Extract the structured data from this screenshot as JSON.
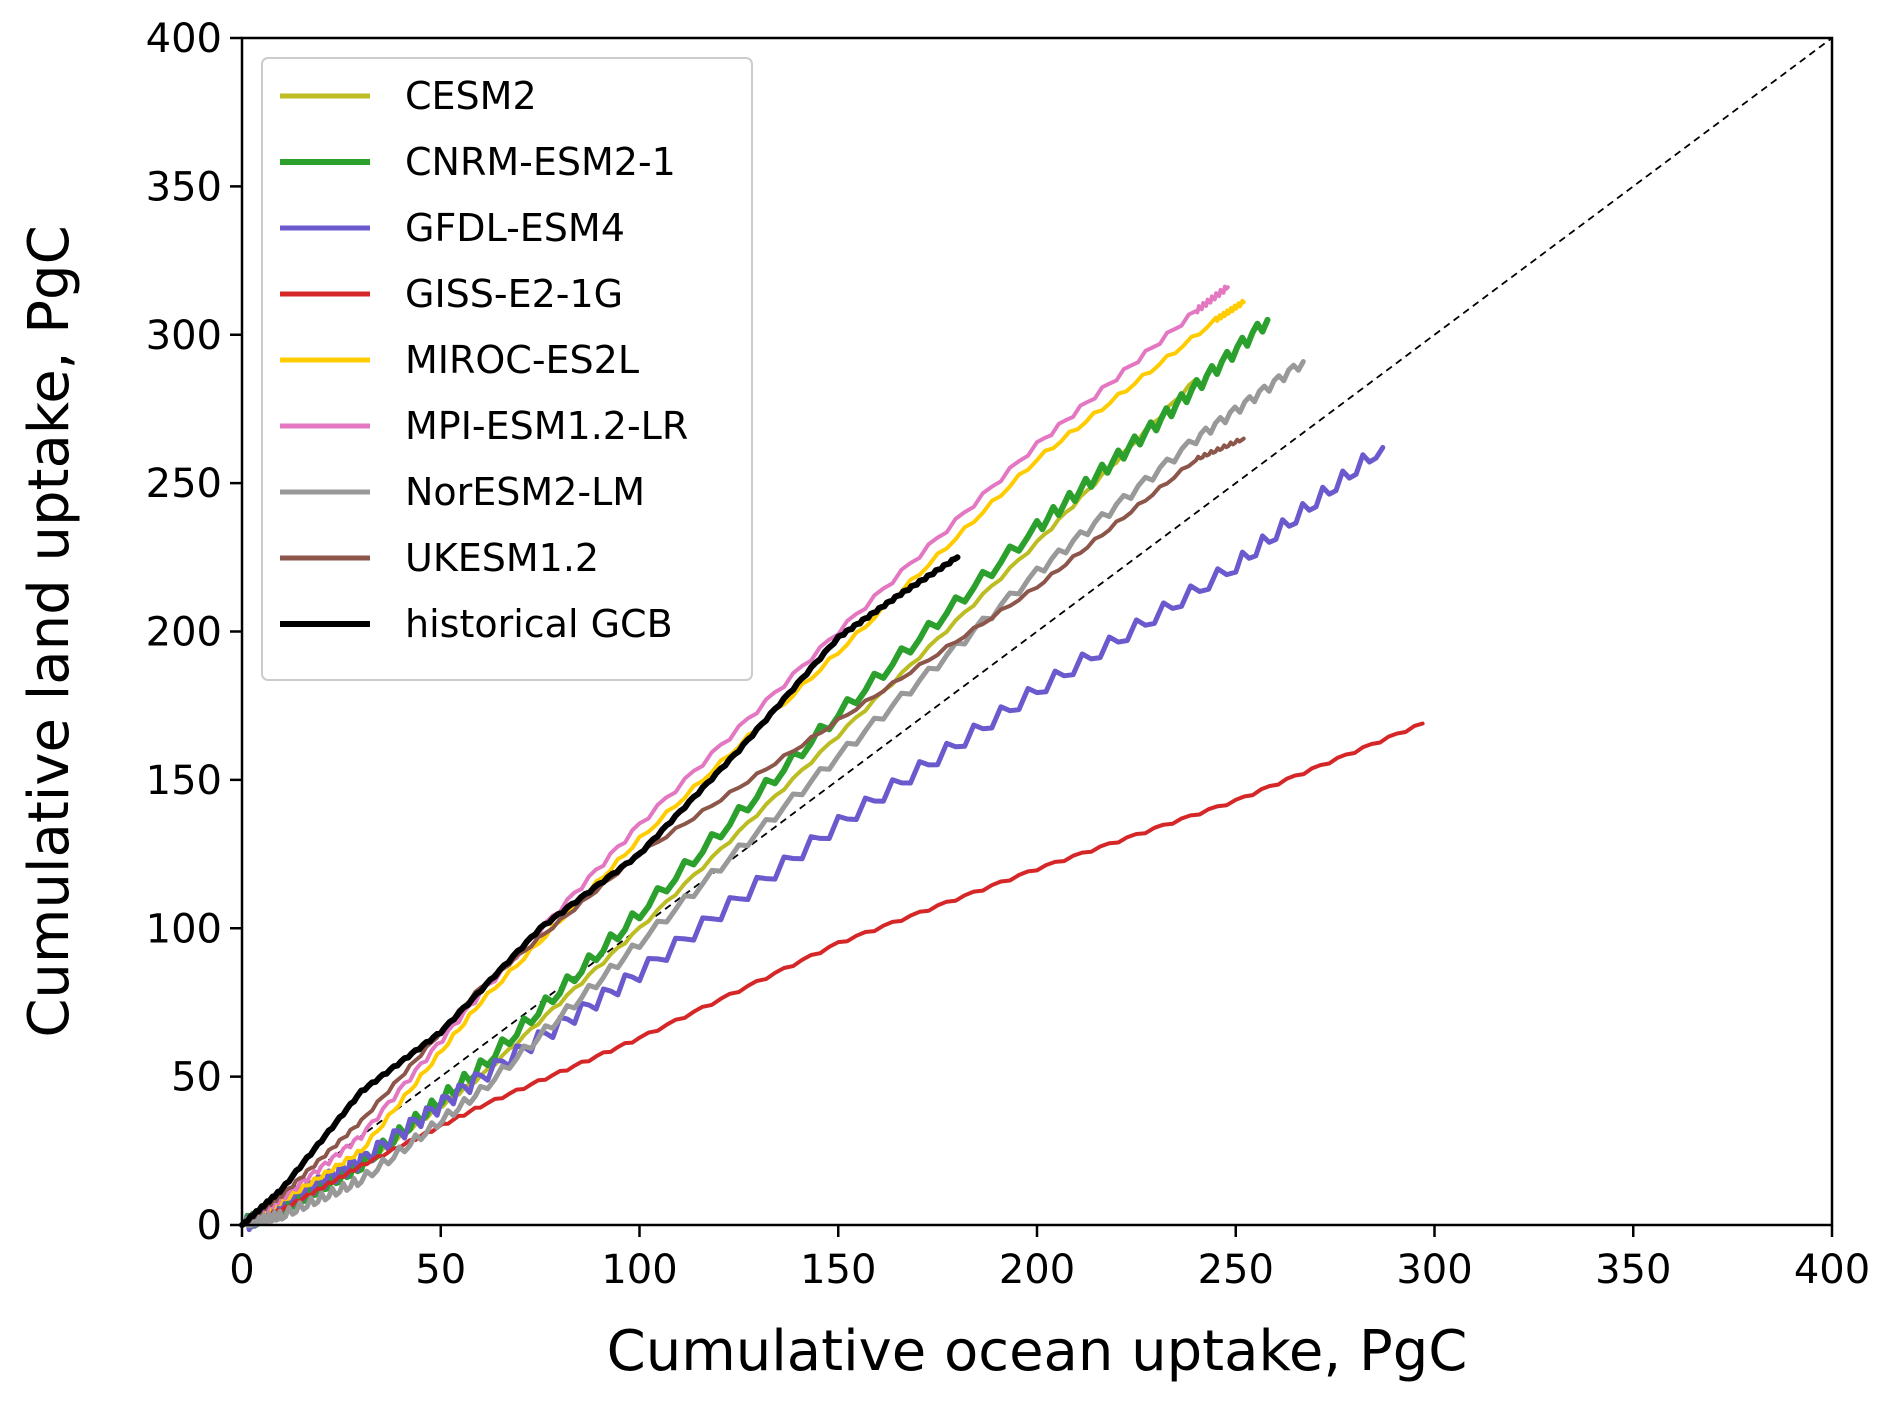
{
  "chart_data": {
    "type": "line",
    "title": "",
    "xlabel": "Cumulative ocean uptake, PgC",
    "ylabel": "Cumulative land uptake, PgC",
    "xlim": [
      0,
      400
    ],
    "ylim": [
      0,
      400
    ],
    "xticks": [
      "0",
      "50",
      "100",
      "150",
      "200",
      "250",
      "300",
      "350",
      "400"
    ],
    "yticks": [
      "0",
      "50",
      "100",
      "150",
      "200",
      "250",
      "300",
      "350",
      "400"
    ],
    "grid": false,
    "legend_position": "top-left",
    "reference_line": {
      "style": "dashed",
      "color": "#000000",
      "x": [
        0,
        400
      ],
      "y": [
        0,
        400
      ]
    },
    "series": [
      {
        "name": "CESM2",
        "color": "#bcbd22",
        "width": 4,
        "wiggle": 0.6,
        "x": [
          0,
          10,
          30,
          60,
          100,
          150,
          200,
          240
        ],
        "y": [
          0,
          5,
          20,
          50,
          100,
          165,
          230,
          285
        ]
      },
      {
        "name": "CNRM-ESM2-1",
        "color": "#2ca02c",
        "width": 6,
        "wiggle": 2.5,
        "x": [
          0,
          10,
          30,
          60,
          100,
          150,
          200,
          230,
          258
        ],
        "y": [
          0,
          5,
          20,
          53,
          105,
          172,
          235,
          270,
          305
        ]
      },
      {
        "name": "GFDL-ESM4",
        "color": "#6a5acd",
        "width": 5,
        "wiggle": 3.0,
        "x": [
          0,
          10,
          30,
          60,
          100,
          150,
          200,
          250,
          287
        ],
        "y": [
          0,
          8,
          22,
          50,
          85,
          135,
          180,
          222,
          262
        ]
      },
      {
        "name": "GISS-E2-1G",
        "color": "#d62728",
        "width": 4,
        "wiggle": 0.5,
        "x": [
          0,
          10,
          30,
          60,
          100,
          150,
          200,
          250,
          297
        ],
        "y": [
          0,
          5,
          20,
          40,
          63,
          95,
          120,
          143,
          169
        ]
      },
      {
        "name": "MIROC-ES2L",
        "color": "#ffcc00",
        "width": 4,
        "wiggle": 0.8,
        "x": [
          0,
          10,
          30,
          60,
          100,
          150,
          200,
          245,
          252
        ],
        "y": [
          0,
          8,
          25,
          75,
          130,
          193,
          258,
          305,
          311
        ]
      },
      {
        "name": "MPI-ESM1.2-LR",
        "color": "#e377c2",
        "width": 4,
        "wiggle": 1.0,
        "x": [
          0,
          10,
          30,
          60,
          100,
          150,
          200,
          240,
          248
        ],
        "y": [
          0,
          9,
          30,
          78,
          135,
          200,
          263,
          308,
          316
        ]
      },
      {
        "name": "NorESM2-LM",
        "color": "#999999",
        "width": 5,
        "wiggle": 1.8,
        "x": [
          0,
          10,
          30,
          60,
          100,
          150,
          200,
          240,
          267
        ],
        "y": [
          0,
          3,
          15,
          45,
          95,
          158,
          220,
          265,
          291
        ]
      },
      {
        "name": "UKESM1.2",
        "color": "#8c564b",
        "width": 4,
        "wiggle": 0.6,
        "x": [
          0,
          10,
          30,
          60,
          100,
          150,
          200,
          240,
          252
        ],
        "y": [
          0,
          10,
          35,
          80,
          125,
          170,
          215,
          258,
          265
        ]
      },
      {
        "name": "historical GCB",
        "color": "#000000",
        "width": 6,
        "wiggle": 0.4,
        "x": [
          0,
          10,
          30,
          50,
          75,
          100,
          125,
          150,
          165,
          180
        ],
        "y": [
          0,
          12,
          45,
          65,
          100,
          125,
          160,
          198,
          212,
          225
        ]
      }
    ]
  }
}
